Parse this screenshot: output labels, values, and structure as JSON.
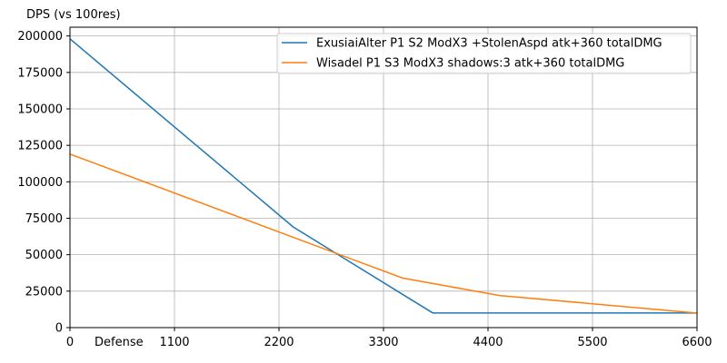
{
  "chart_data": {
    "type": "line",
    "title": "",
    "xlabel": "Defense",
    "ylabel": "DPS (vs 100res)",
    "xlim": [
      0,
      6600
    ],
    "ylim": [
      0,
      206000
    ],
    "x_ticks": [
      0,
      1100,
      2200,
      3300,
      4400,
      5500,
      6600
    ],
    "x_tick_labels": [
      "0",
      "1100",
      "2200",
      "3300",
      "4400",
      "5500",
      "6600"
    ],
    "y_ticks": [
      0,
      25000,
      50000,
      75000,
      100000,
      125000,
      150000,
      175000,
      200000
    ],
    "y_tick_labels": [
      "0",
      "25000",
      "50000",
      "75000",
      "100000",
      "125000",
      "150000",
      "175000",
      "200000"
    ],
    "grid": true,
    "legend_position": "top-right",
    "series": [
      {
        "name": "ExusiaiAlter P1 S2 ModX3 +StolenAspd atk+360 totalDMG",
        "color": "#1f77b4",
        "x": [
          0,
          2350,
          3820,
          6600
        ],
        "y": [
          198000,
          69000,
          10000,
          10000
        ]
      },
      {
        "name": "Wisadel P1 S3 ModX3 shadows:3 atk+360 totalDMG",
        "color": "#ff7f0e",
        "x": [
          0,
          3500,
          4520,
          6600
        ],
        "y": [
          119000,
          34000,
          22000,
          10000
        ]
      }
    ]
  }
}
